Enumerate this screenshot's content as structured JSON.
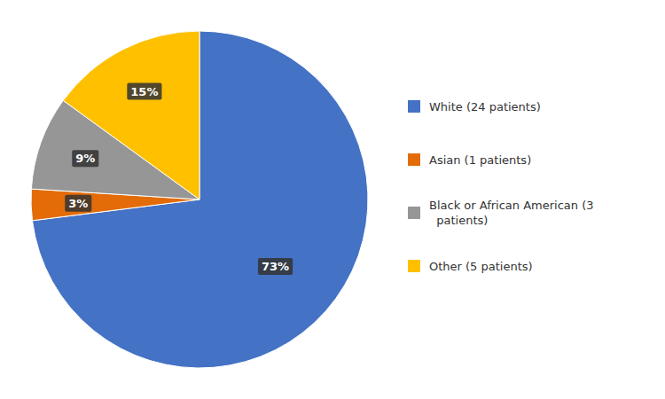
{
  "chart_data": {
    "type": "pie",
    "categories": [
      "White (24 patients)",
      "Asian (1 patients)",
      "Black or African American (3\n  patients)",
      "Other (5 patients)"
    ],
    "values": [
      73,
      3,
      9,
      15
    ],
    "value_labels": [
      "73%",
      "3%",
      "9%",
      "15%"
    ],
    "colors": [
      "#4472C4",
      "#E36C09",
      "#969696",
      "#FFC000"
    ],
    "data_labels": true,
    "legend": "right"
  }
}
